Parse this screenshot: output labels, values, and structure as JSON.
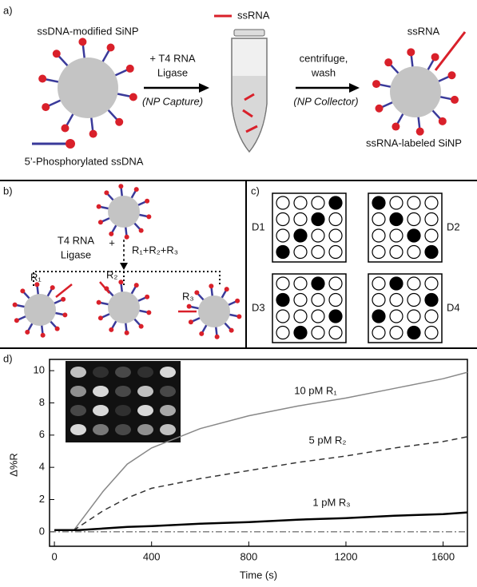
{
  "panel_a": {
    "label": "a)",
    "np_title": "ssDNA-modified SiNP",
    "ligase_1": "+ T4 RNA",
    "ligase_2": "Ligase",
    "capture": "(NP Capture)",
    "ssrna_key": "ssRNA",
    "centrifuge_1": "centrifuge,",
    "centrifuge_2": "wash",
    "collector": "(NP Collector)",
    "ssrna_tag": "ssRNA",
    "labeled": "ssRNA-labeled SiNP",
    "phospho": "5’-Phosphorylated ssDNA"
  },
  "panel_b": {
    "label": "b)",
    "ligase_1": "T4 RNA",
    "ligase_2": "Ligase",
    "plus": "+",
    "mix": "R₁+R₂+R₃",
    "targets": [
      "R₁",
      "R₂",
      "R₃"
    ]
  },
  "panel_c": {
    "label": "c)",
    "arrays": [
      {
        "name": "D1",
        "pattern": [
          [
            0,
            0,
            0,
            1
          ],
          [
            0,
            0,
            1,
            0
          ],
          [
            0,
            1,
            0,
            0
          ],
          [
            1,
            0,
            0,
            0
          ]
        ]
      },
      {
        "name": "D2",
        "pattern": [
          [
            1,
            0,
            0,
            0
          ],
          [
            0,
            1,
            0,
            0
          ],
          [
            0,
            0,
            1,
            0
          ],
          [
            0,
            0,
            0,
            1
          ]
        ]
      },
      {
        "name": "D3",
        "pattern": [
          [
            0,
            0,
            1,
            0
          ],
          [
            1,
            0,
            0,
            0
          ],
          [
            0,
            0,
            0,
            1
          ],
          [
            0,
            1,
            0,
            0
          ]
        ]
      },
      {
        "name": "D4",
        "pattern": [
          [
            0,
            1,
            0,
            0
          ],
          [
            0,
            0,
            0,
            1
          ],
          [
            1,
            0,
            0,
            0
          ],
          [
            0,
            0,
            1,
            0
          ]
        ]
      }
    ]
  },
  "chart_data": {
    "type": "line",
    "panel_label": "d)",
    "x_label": "Time (s)",
    "y_label": "Δ%R",
    "x": [
      0,
      80,
      100,
      200,
      300,
      400,
      600,
      800,
      1000,
      1200,
      1400,
      1600,
      1700
    ],
    "series": [
      {
        "name": "10 pM R₁",
        "color": "#888888",
        "dash": "solid",
        "values": [
          0.1,
          0.1,
          0.5,
          2.5,
          4.2,
          5.2,
          6.4,
          7.2,
          7.8,
          8.3,
          8.9,
          9.5,
          9.9
        ]
      },
      {
        "name": "5 pM R₂",
        "color": "#333333",
        "dash": "dashed",
        "values": [
          0.1,
          0.1,
          0.3,
          1.3,
          2.1,
          2.7,
          3.3,
          3.8,
          4.3,
          4.7,
          5.2,
          5.6,
          5.9
        ]
      },
      {
        "name": "1 pM R₃",
        "color": "#000000",
        "dash": "solid",
        "values": [
          0.1,
          0.1,
          0.1,
          0.2,
          0.3,
          0.35,
          0.5,
          0.6,
          0.75,
          0.85,
          1.0,
          1.1,
          1.2
        ]
      }
    ],
    "reference_line": 0,
    "xlim": [
      -20,
      1700
    ],
    "ylim": [
      -0.9,
      10.7
    ],
    "xticks": [
      0,
      400,
      800,
      1200,
      1600
    ],
    "yticks": [
      0,
      2,
      4,
      6,
      8,
      10
    ]
  }
}
